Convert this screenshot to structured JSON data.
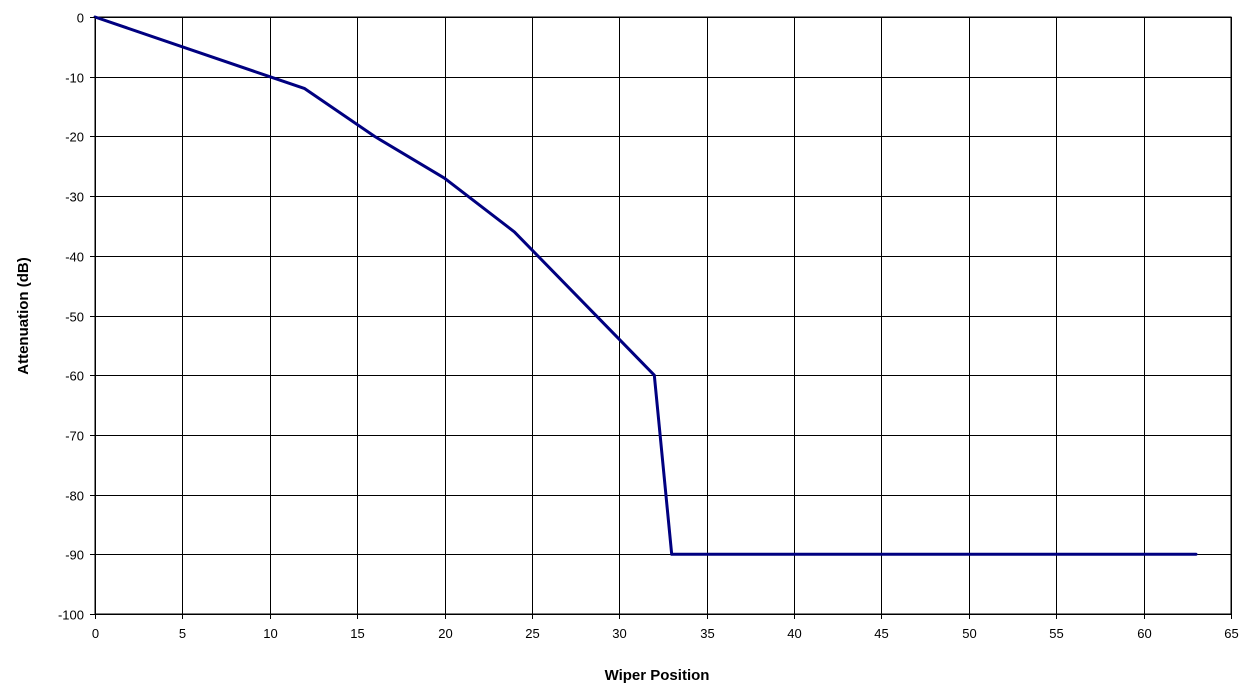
{
  "chart_data": {
    "type": "line",
    "title": "",
    "xlabel": "Wiper Position",
    "ylabel": "Attenuation (dB)",
    "xlim": [
      0,
      65
    ],
    "ylim": [
      -100,
      0
    ],
    "x_ticks": [
      0,
      5,
      10,
      15,
      20,
      25,
      30,
      35,
      40,
      45,
      50,
      55,
      60,
      65
    ],
    "y_ticks": [
      0,
      -10,
      -20,
      -30,
      -40,
      -50,
      -60,
      -70,
      -80,
      -90,
      -100
    ],
    "grid": true,
    "legend": "none",
    "series": [
      {
        "color": "#000080",
        "points": [
          [
            0,
            0
          ],
          [
            10,
            -10
          ],
          [
            12,
            -12
          ],
          [
            16,
            -20
          ],
          [
            20,
            -27
          ],
          [
            24,
            -36
          ],
          [
            32,
            -60
          ],
          [
            33,
            -90
          ],
          [
            63,
            -90
          ]
        ]
      }
    ],
    "colors": {
      "grid": "#000000",
      "background": "#ffffff",
      "line": "#000080"
    }
  }
}
